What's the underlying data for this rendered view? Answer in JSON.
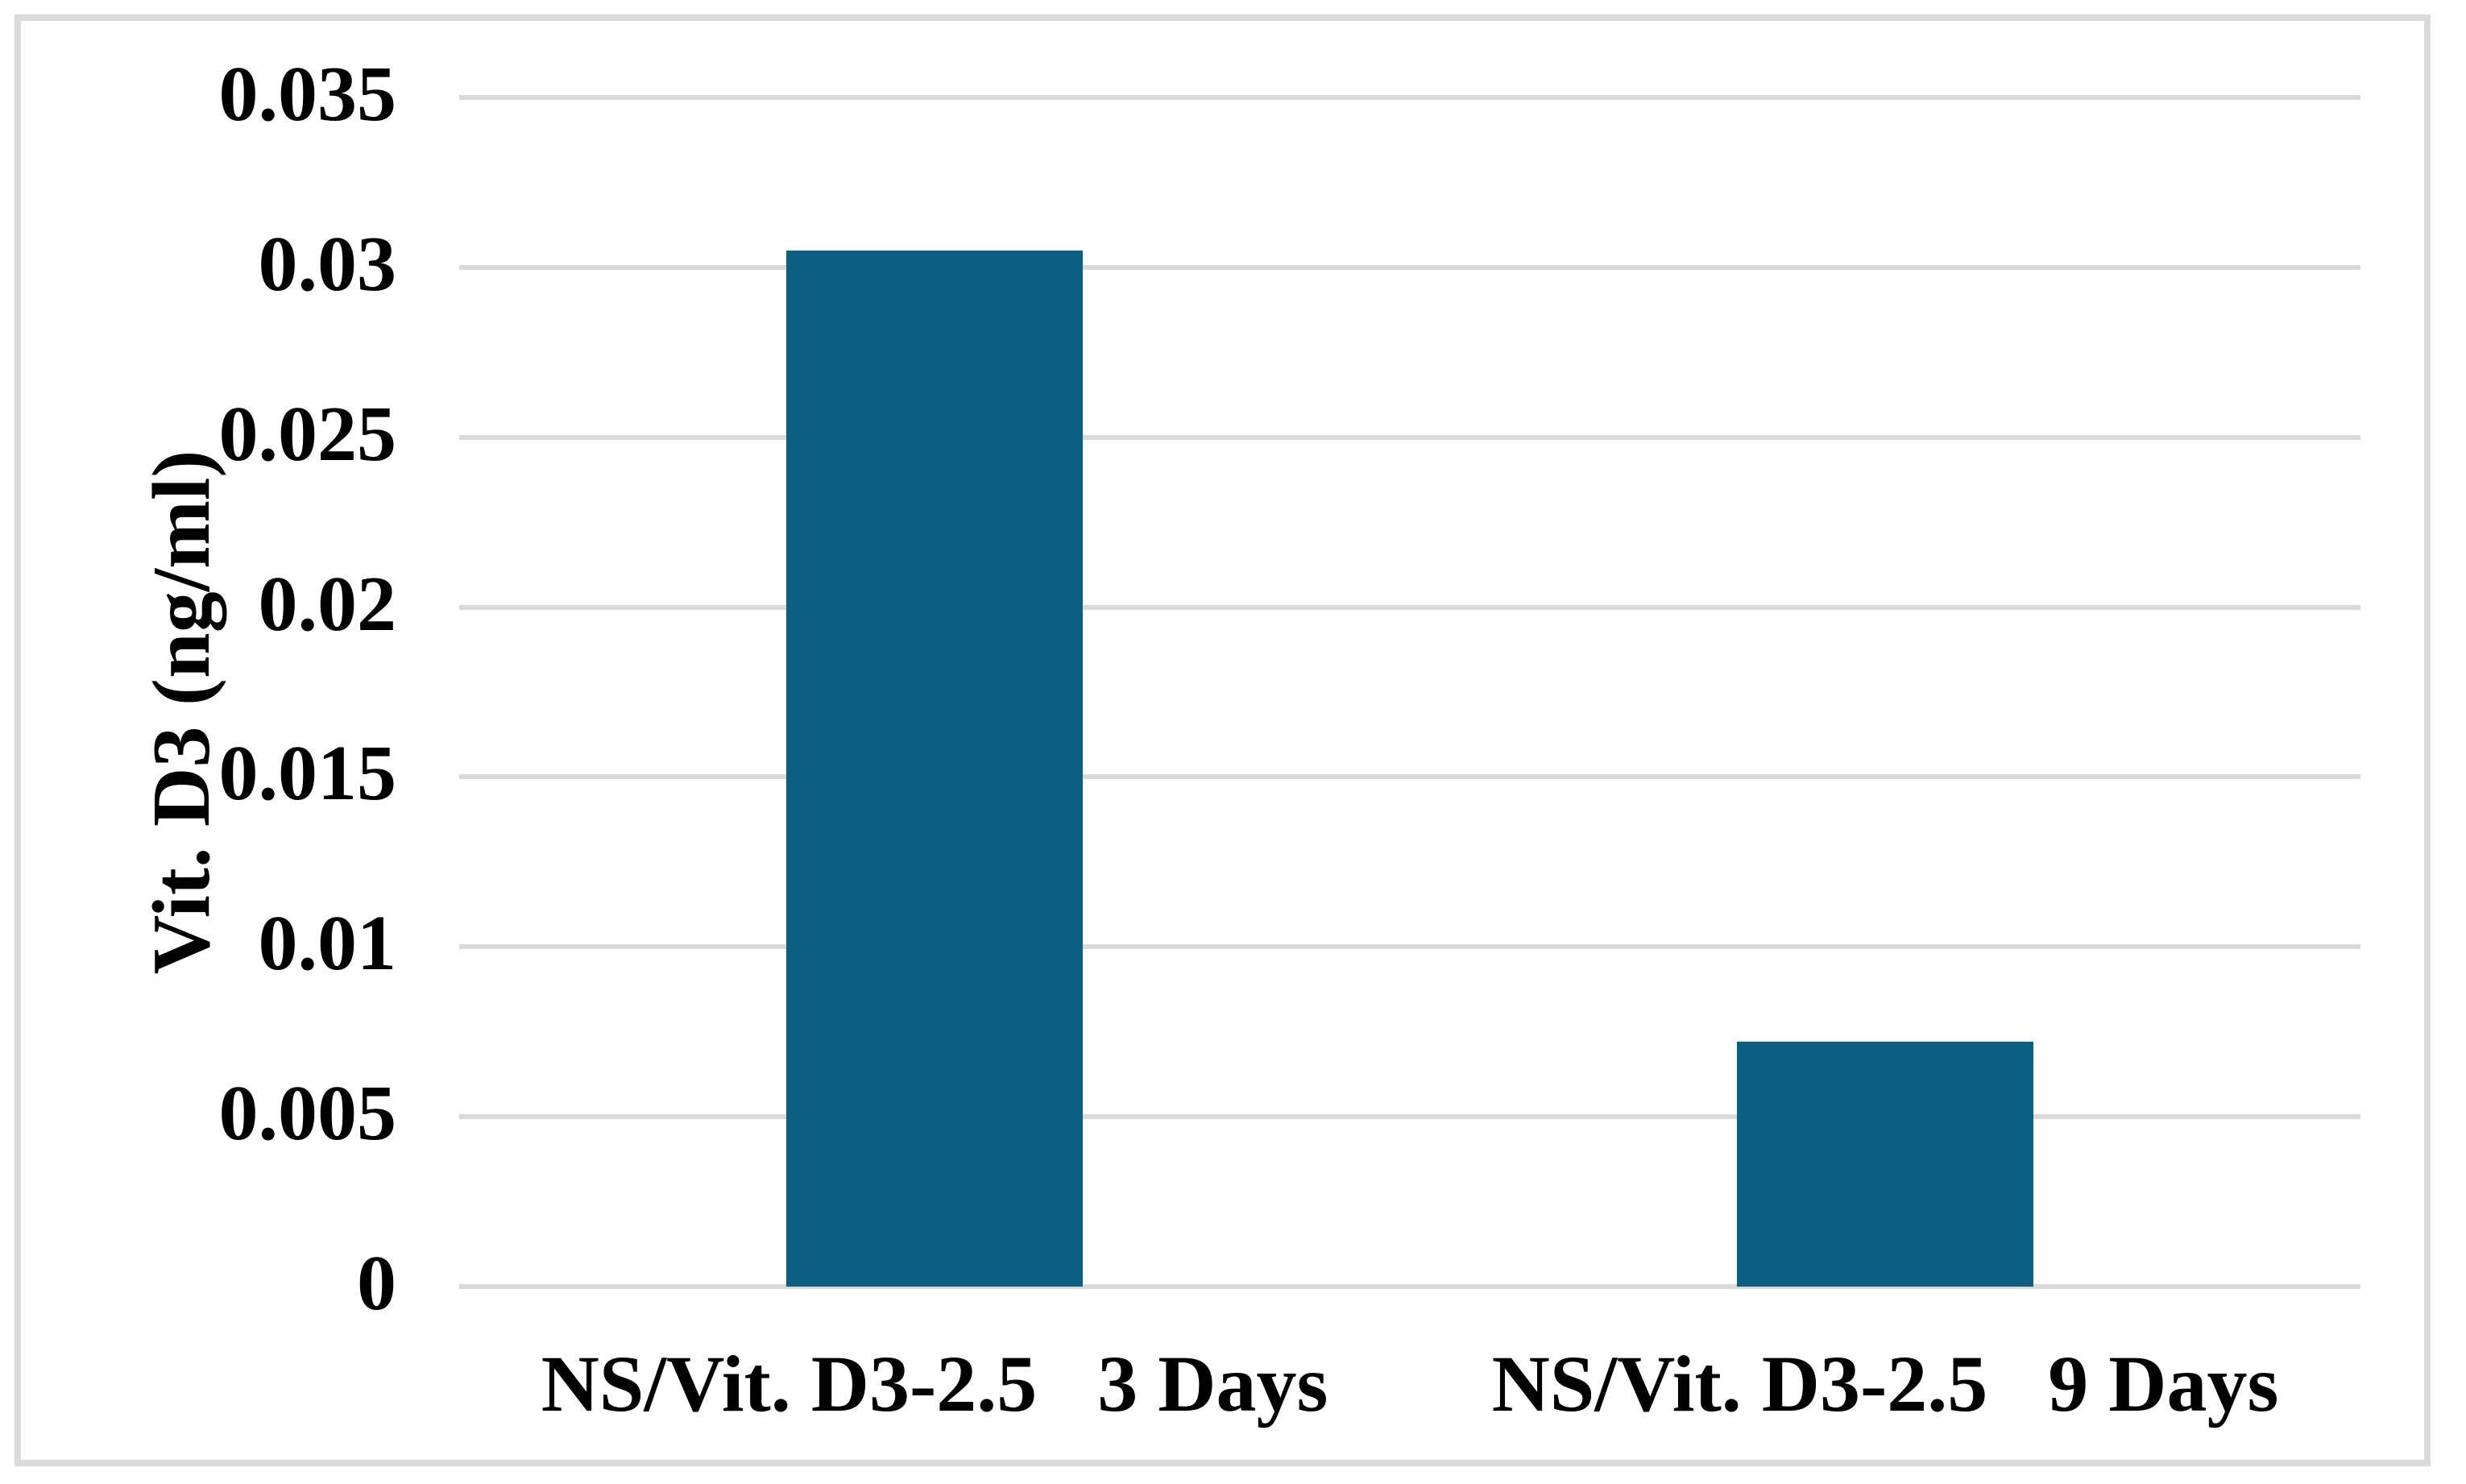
{
  "chart_data": {
    "type": "bar",
    "title": "",
    "xlabel": "",
    "ylabel": "Vit. D3 (ng/ml)",
    "categories": [
      "NS/Vit. D3-2.5   3 Days",
      "NS/Vit. D3-2.5   9 Days"
    ],
    "values": [
      0.0305,
      0.0072
    ],
    "ylim": [
      0,
      0.035
    ],
    "ytick_step": 0.005,
    "ytick_labels": [
      "0",
      "0.005",
      "0.01",
      "0.015",
      "0.02",
      "0.025",
      "0.03",
      "0.035"
    ],
    "grid": true,
    "legend_position": "none",
    "bar_color": "#0c5f81",
    "gridline_color": "#d9d9d9",
    "frame_color": "#dadada",
    "text_color": "#000000"
  }
}
